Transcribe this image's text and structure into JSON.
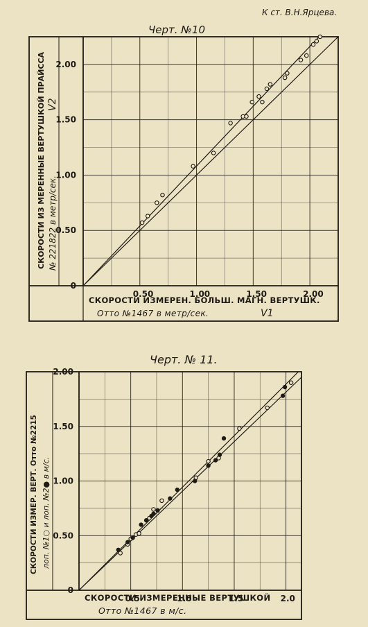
{
  "header": {
    "attribution": "К ст. В.Н.Ярцева."
  },
  "chart_data": [
    {
      "type": "scatter",
      "title": "Черт. №10",
      "xlabel": "СКОРОСТИ ИЗМЕРЕН. БОЛЬШ. МАГН. ВЕРТУШК.",
      "xlabel2": "Отто №1467 в метр/сек.",
      "xsymbol": "V1",
      "ylabel": "СКОРОСТИ ИЗ МЕРЕННЫЕ ВЕРТУШКОЙ ПРАЙССА",
      "ylabel2": "№ 221822 в метр/сек.",
      "ysymbol": "V2",
      "xlim": [
        0,
        2.25
      ],
      "ylim": [
        0,
        2.25
      ],
      "xticks": [
        "0",
        "0.50",
        "1.00",
        "1.50",
        "2.00"
      ],
      "yticks": [
        "0",
        "0.50",
        "1.00",
        "1.50",
        "2.00"
      ],
      "grid": true,
      "series": [
        {
          "marker": "open-circle",
          "points": [
            [
              0.52,
              0.57
            ],
            [
              0.57,
              0.63
            ],
            [
              0.65,
              0.75
            ],
            [
              0.7,
              0.82
            ],
            [
              0.97,
              1.08
            ],
            [
              1.15,
              1.2
            ],
            [
              1.3,
              1.47
            ],
            [
              1.41,
              1.53
            ],
            [
              1.44,
              1.53
            ],
            [
              1.49,
              1.66
            ],
            [
              1.55,
              1.71
            ],
            [
              1.58,
              1.66
            ],
            [
              1.62,
              1.78
            ],
            [
              1.65,
              1.82
            ],
            [
              1.78,
              1.88
            ],
            [
              1.8,
              1.92
            ],
            [
              1.92,
              2.04
            ],
            [
              1.97,
              2.08
            ],
            [
              2.03,
              2.18
            ],
            [
              2.06,
              2.21
            ],
            [
              2.09,
              2.25
            ]
          ]
        }
      ],
      "lines": [
        {
          "name": "fit",
          "x": [
            0,
            2.09
          ],
          "y": [
            0,
            2.26
          ]
        },
        {
          "name": "equality",
          "x": [
            0,
            2.25
          ],
          "y": [
            0,
            2.25
          ]
        }
      ]
    },
    {
      "type": "scatter",
      "title": "Черт. № 11.",
      "xlabel": "СКОРОСТИ ИЗМЕРЕННЫЕ ВЕРТУШКОЙ",
      "xlabel2": "Отто №1467 в м/с.",
      "ylabel": "СКОРОСТИ ИЗМЕР. ВЕРТ. Отто №2215",
      "ylabel2": "лоп. №1○ и лоп. №2● в м/с.",
      "xlim": [
        0,
        2.15
      ],
      "ylim": [
        0,
        2.0
      ],
      "xticks": [
        "0",
        "0.5",
        "1.0",
        "1.5",
        "2.0"
      ],
      "yticks": [
        "0",
        "0.50",
        "1.00",
        "1.50",
        "2.00"
      ],
      "grid": true,
      "series": [
        {
          "name": "лоп. №1",
          "marker": "open-circle",
          "points": [
            [
              0.4,
              0.34
            ],
            [
              0.47,
              0.42
            ],
            [
              0.5,
              0.47
            ],
            [
              0.55,
              0.51
            ],
            [
              0.58,
              0.52
            ],
            [
              0.68,
              0.66
            ],
            [
              0.72,
              0.74
            ],
            [
              0.8,
              0.82
            ],
            [
              1.13,
              1.03
            ],
            [
              1.25,
              1.18
            ],
            [
              1.35,
              1.21
            ],
            [
              1.55,
              1.48
            ],
            [
              1.82,
              1.67
            ],
            [
              2.05,
              1.9
            ]
          ]
        },
        {
          "name": "лоп. №2",
          "marker": "filled-circle",
          "points": [
            [
              0.38,
              0.37
            ],
            [
              0.47,
              0.44
            ],
            [
              0.52,
              0.48
            ],
            [
              0.6,
              0.6
            ],
            [
              0.65,
              0.64
            ],
            [
              0.7,
              0.68
            ],
            [
              0.72,
              0.7
            ],
            [
              0.76,
              0.73
            ],
            [
              0.88,
              0.84
            ],
            [
              0.95,
              0.92
            ],
            [
              1.12,
              1.0
            ],
            [
              1.25,
              1.14
            ],
            [
              1.32,
              1.19
            ],
            [
              1.36,
              1.24
            ],
            [
              1.4,
              1.39
            ],
            [
              1.97,
              1.78
            ],
            [
              1.99,
              1.86
            ]
          ]
        }
      ],
      "lines": [
        {
          "name": "line-1",
          "x": [
            0,
            2.12
          ],
          "y": [
            0,
            2.0
          ]
        },
        {
          "name": "line-2",
          "x": [
            0,
            2.15
          ],
          "y": [
            0,
            1.95
          ]
        }
      ]
    }
  ]
}
